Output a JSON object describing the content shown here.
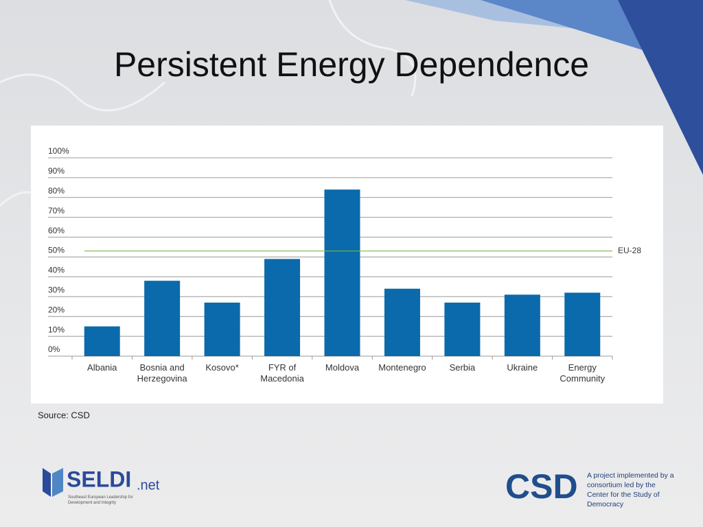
{
  "title": "Persistent Energy Dependence",
  "chart_data": {
    "type": "bar",
    "categories": [
      "Albania",
      "Bosnia and Herzegovina",
      "Kosovo*",
      "FYR of Macedonia",
      "Moldova",
      "Montenegro",
      "Serbia",
      "Ukraine",
      "Energy Community"
    ],
    "values": [
      15,
      38,
      27,
      49,
      84,
      34,
      27,
      31,
      32
    ],
    "color": "#0a6aab",
    "ylim": [
      0,
      100
    ],
    "yticks": [
      {
        "value": 0,
        "label": "0%"
      },
      {
        "value": 10,
        "label": "10%"
      },
      {
        "value": 20,
        "label": "20%"
      },
      {
        "value": 30,
        "label": "30%"
      },
      {
        "value": 40,
        "label": "40%"
      },
      {
        "value": 50,
        "label": "50%"
      },
      {
        "value": 60,
        "label": "60%"
      },
      {
        "value": 70,
        "label": "70%"
      },
      {
        "value": 80,
        "label": "80%"
      },
      {
        "value": 90,
        "label": "90%"
      },
      {
        "value": 100,
        "label": "100%"
      }
    ],
    "grid": true,
    "reference_lines": [
      {
        "label": "EU-28",
        "value": 53,
        "color": "#7ab648"
      }
    ]
  },
  "source": "Source: CSD",
  "footer": {
    "seldi_name": "SELDI",
    "seldi_suffix": ".net",
    "seldi_tagline": "Southeast European Leadership for Development and Integrity",
    "csd_logo": "CSD",
    "project_note": "A project implemented by a consortium led by the Center for the Study of Democracy"
  }
}
